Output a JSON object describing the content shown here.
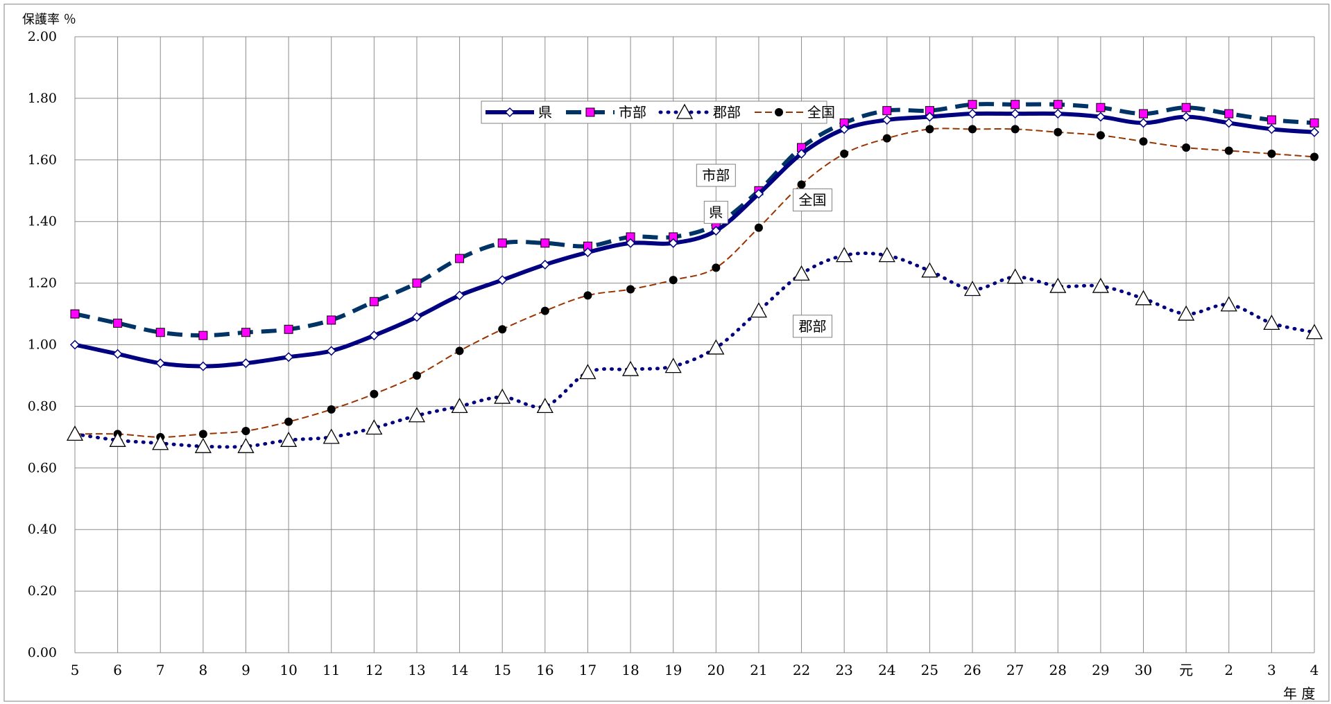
{
  "chart_data": {
    "type": "line",
    "ylabel": "保護率 ％",
    "xlabel": "年 度",
    "ylim": [
      0,
      2.0
    ],
    "yticks": [
      "0.00",
      "0.20",
      "0.40",
      "0.60",
      "0.80",
      "1.00",
      "1.20",
      "1.40",
      "1.60",
      "1.80",
      "2.00"
    ],
    "categories": [
      "5",
      "6",
      "7",
      "8",
      "9",
      "10",
      "11",
      "12",
      "13",
      "14",
      "15",
      "16",
      "17",
      "18",
      "19",
      "20",
      "21",
      "22",
      "23",
      "24",
      "25",
      "26",
      "27",
      "28",
      "29",
      "30",
      "元",
      "2",
      "3",
      "4"
    ],
    "grid": true,
    "legend_position": "top-center",
    "series": [
      {
        "name": "県",
        "color": "#000080",
        "marker": "diamond",
        "line": "solid-thick",
        "values": [
          1.0,
          0.97,
          0.94,
          0.93,
          0.94,
          0.96,
          0.98,
          1.03,
          1.09,
          1.16,
          1.21,
          1.26,
          1.3,
          1.33,
          1.33,
          1.37,
          1.49,
          1.62,
          1.7,
          1.73,
          1.74,
          1.75,
          1.75,
          1.75,
          1.74,
          1.72,
          1.74,
          1.72,
          1.7,
          1.69
        ]
      },
      {
        "name": "市部",
        "color": "#003366",
        "marker": "square-magenta",
        "line": "dashed-thick",
        "values": [
          1.1,
          1.07,
          1.04,
          1.03,
          1.04,
          1.05,
          1.08,
          1.14,
          1.2,
          1.28,
          1.33,
          1.33,
          1.32,
          1.35,
          1.35,
          1.39,
          1.5,
          1.64,
          1.72,
          1.76,
          1.76,
          1.78,
          1.78,
          1.78,
          1.77,
          1.75,
          1.77,
          1.75,
          1.73,
          1.72
        ]
      },
      {
        "name": "郡部",
        "color": "#000080",
        "marker": "triangle",
        "line": "dotted",
        "values": [
          0.71,
          0.69,
          0.68,
          0.67,
          0.67,
          0.69,
          0.7,
          0.73,
          0.77,
          0.8,
          0.83,
          0.8,
          0.91,
          0.92,
          0.93,
          0.99,
          1.11,
          1.23,
          1.29,
          1.29,
          1.24,
          1.18,
          1.22,
          1.19,
          1.19,
          1.15,
          1.1,
          1.13,
          1.07,
          1.04
        ]
      },
      {
        "name": "全国",
        "color": "#993300",
        "marker": "circle",
        "line": "dashed-thin",
        "values": [
          0.71,
          0.71,
          0.7,
          0.71,
          0.72,
          0.75,
          0.79,
          0.84,
          0.9,
          0.98,
          1.05,
          1.11,
          1.16,
          1.18,
          1.21,
          1.25,
          1.38,
          1.52,
          1.62,
          1.67,
          1.7,
          1.7,
          1.7,
          1.69,
          1.68,
          1.66,
          1.64,
          1.63,
          1.62,
          1.61
        ]
      }
    ],
    "annotations": [
      {
        "text": "市部",
        "at_category": "20",
        "at_value": 1.55
      },
      {
        "text": "県",
        "at_category": "20",
        "at_value": 1.43
      },
      {
        "text": "全国",
        "at_category": "22",
        "at_value": 1.47
      },
      {
        "text": "郡部",
        "at_category": "22",
        "at_value": 1.06
      }
    ]
  }
}
